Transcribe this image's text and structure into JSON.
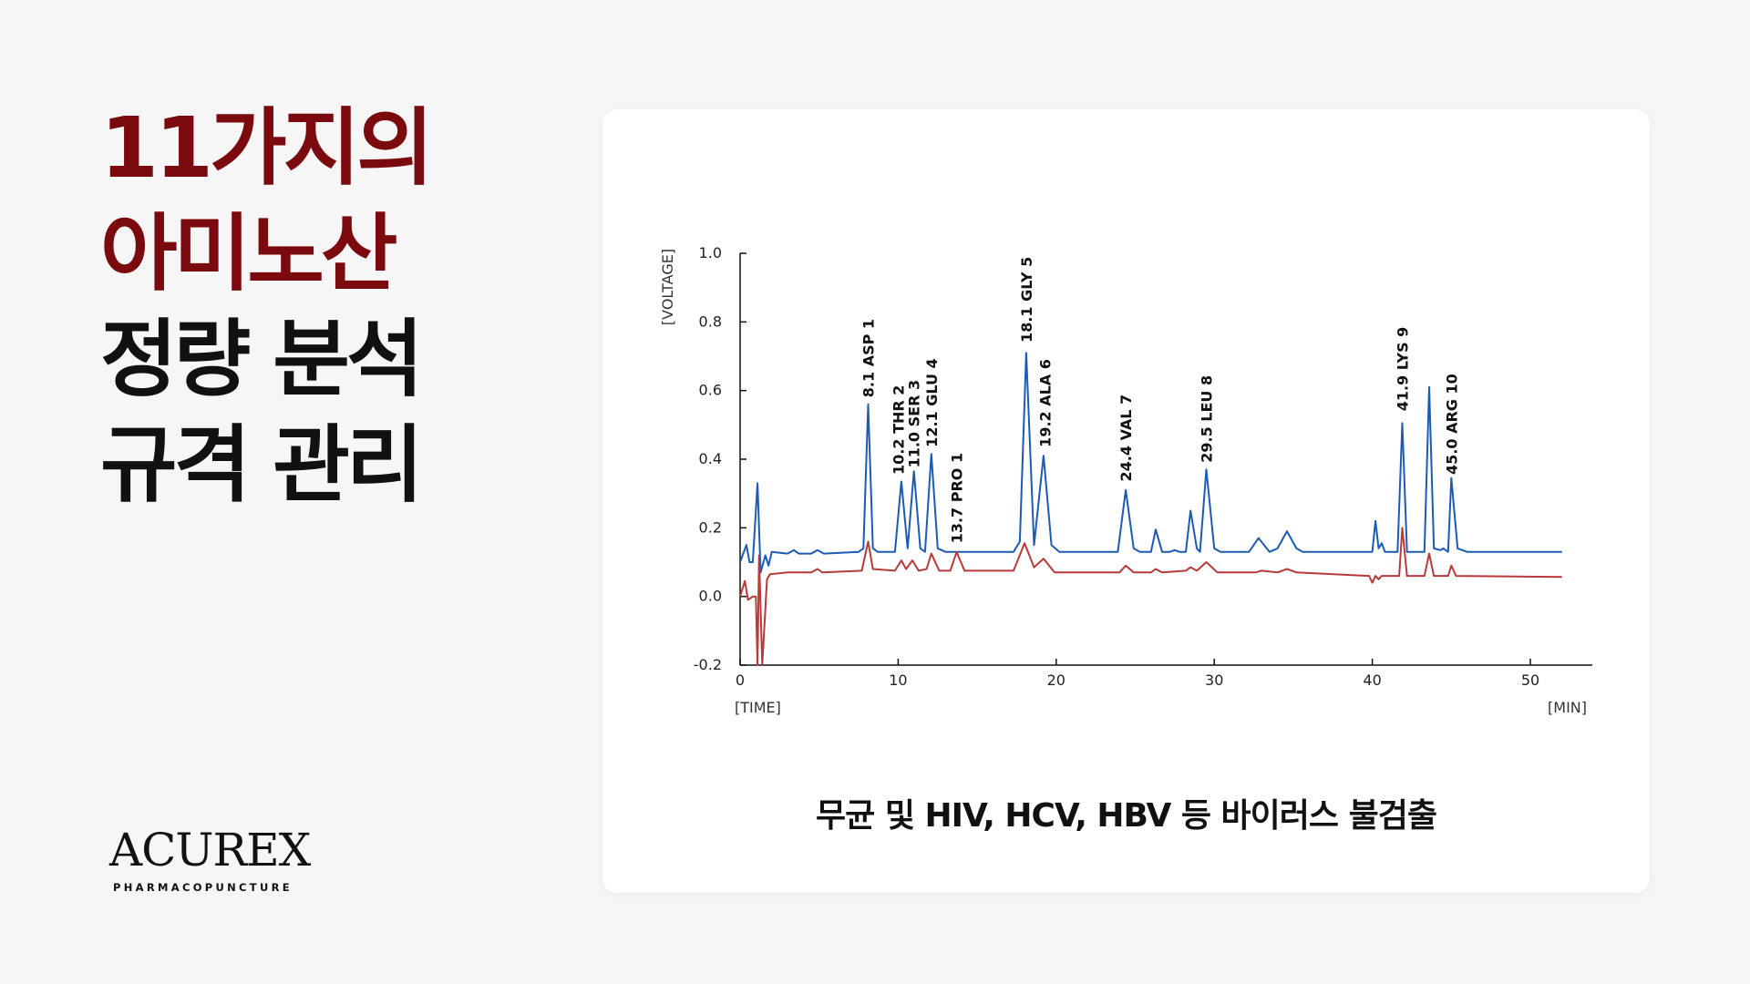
{
  "headline": {
    "lines": [
      "11가지의",
      "아미노산",
      "정량 분석",
      "규격 관리"
    ]
  },
  "logo": {
    "name": "ACUREX",
    "sub": "PHARMACOPUNCTURE"
  },
  "caption": "무균 및 HIV, HCV, HBV 등 바이러스 불검출",
  "colors": {
    "accent": "#7a0a0e",
    "series_blue": "#1c5bb5",
    "series_red": "#b83a3a"
  },
  "chart_data": {
    "type": "line",
    "xlabel": "[TIME]",
    "xunit": "[MIN]",
    "ylabel": "[VOLTAGE]",
    "xlim": [
      0,
      52
    ],
    "ylim": [
      -0.2,
      1.0
    ],
    "xticks": [
      "0",
      "10",
      "20",
      "30",
      "40",
      "50"
    ],
    "yticks": [
      "1.0",
      "0.8",
      "0.6",
      "0.4",
      "0.2",
      "0.0",
      "-0.2"
    ],
    "grid": false,
    "series": [
      {
        "color": "#1c5bb5",
        "points": [
          [
            0,
            0.1
          ],
          [
            0.4,
            0.15
          ],
          [
            0.6,
            0.1
          ],
          [
            0.8,
            0.1
          ],
          [
            1.1,
            0.33
          ],
          [
            1.3,
            0.07
          ],
          [
            1.6,
            0.12
          ],
          [
            1.8,
            0.09
          ],
          [
            2.0,
            0.13
          ],
          [
            3,
            0.125
          ],
          [
            3.4,
            0.135
          ],
          [
            3.7,
            0.125
          ],
          [
            4.5,
            0.125
          ],
          [
            4.9,
            0.135
          ],
          [
            5.3,
            0.125
          ],
          [
            7.5,
            0.13
          ],
          [
            7.8,
            0.14
          ],
          [
            8.1,
            0.56
          ],
          [
            8.4,
            0.14
          ],
          [
            8.7,
            0.13
          ],
          [
            9.8,
            0.13
          ],
          [
            10.2,
            0.335
          ],
          [
            10.6,
            0.14
          ],
          [
            11.0,
            0.365
          ],
          [
            11.4,
            0.14
          ],
          [
            11.7,
            0.13
          ],
          [
            12.1,
            0.415
          ],
          [
            12.5,
            0.14
          ],
          [
            13,
            0.13
          ],
          [
            17.3,
            0.13
          ],
          [
            17.7,
            0.16
          ],
          [
            18.1,
            0.71
          ],
          [
            18.6,
            0.15
          ],
          [
            19.2,
            0.41
          ],
          [
            19.7,
            0.15
          ],
          [
            20.2,
            0.13
          ],
          [
            23.9,
            0.13
          ],
          [
            24.4,
            0.31
          ],
          [
            24.9,
            0.14
          ],
          [
            25.3,
            0.13
          ],
          [
            26.0,
            0.13
          ],
          [
            26.3,
            0.195
          ],
          [
            26.7,
            0.13
          ],
          [
            27.2,
            0.13
          ],
          [
            27.5,
            0.135
          ],
          [
            27.8,
            0.13
          ],
          [
            28.2,
            0.13
          ],
          [
            28.5,
            0.25
          ],
          [
            28.9,
            0.14
          ],
          [
            29.1,
            0.13
          ],
          [
            29.5,
            0.37
          ],
          [
            30,
            0.14
          ],
          [
            30.4,
            0.13
          ],
          [
            32.2,
            0.13
          ],
          [
            32.8,
            0.17
          ],
          [
            33.5,
            0.13
          ],
          [
            34.0,
            0.14
          ],
          [
            34.6,
            0.19
          ],
          [
            35.2,
            0.14
          ],
          [
            35.6,
            0.13
          ],
          [
            40.0,
            0.13
          ],
          [
            40.2,
            0.22
          ],
          [
            40.4,
            0.14
          ],
          [
            40.6,
            0.155
          ],
          [
            40.8,
            0.13
          ],
          [
            41.6,
            0.13
          ],
          [
            41.9,
            0.505
          ],
          [
            42.2,
            0.13
          ],
          [
            43.3,
            0.13
          ],
          [
            43.6,
            0.61
          ],
          [
            43.9,
            0.14
          ],
          [
            44.3,
            0.135
          ],
          [
            44.5,
            0.14
          ],
          [
            44.8,
            0.13
          ],
          [
            45.0,
            0.345
          ],
          [
            45.4,
            0.14
          ],
          [
            46,
            0.13
          ],
          [
            52,
            0.13
          ]
        ]
      },
      {
        "color": "#b83a3a",
        "points": [
          [
            0,
            0.0
          ],
          [
            0.3,
            0.045
          ],
          [
            0.5,
            -0.01
          ],
          [
            0.8,
            0.0
          ],
          [
            1.0,
            0.0
          ],
          [
            1.1,
            -0.2
          ],
          [
            1.2,
            0.12
          ],
          [
            1.4,
            -0.2
          ],
          [
            1.7,
            0.05
          ],
          [
            1.9,
            0.065
          ],
          [
            3,
            0.07
          ],
          [
            4.5,
            0.07
          ],
          [
            4.9,
            0.08
          ],
          [
            5.2,
            0.07
          ],
          [
            7.7,
            0.075
          ],
          [
            8.1,
            0.16
          ],
          [
            8.4,
            0.08
          ],
          [
            9.8,
            0.075
          ],
          [
            10.2,
            0.105
          ],
          [
            10.5,
            0.08
          ],
          [
            10.9,
            0.105
          ],
          [
            11.3,
            0.075
          ],
          [
            11.8,
            0.08
          ],
          [
            12.1,
            0.125
          ],
          [
            12.6,
            0.075
          ],
          [
            13.3,
            0.075
          ],
          [
            13.7,
            0.13
          ],
          [
            14.2,
            0.075
          ],
          [
            17.3,
            0.075
          ],
          [
            18.0,
            0.155
          ],
          [
            18.6,
            0.085
          ],
          [
            19.2,
            0.11
          ],
          [
            19.9,
            0.07
          ],
          [
            24.0,
            0.07
          ],
          [
            24.4,
            0.09
          ],
          [
            24.9,
            0.07
          ],
          [
            26.0,
            0.07
          ],
          [
            26.3,
            0.08
          ],
          [
            26.7,
            0.07
          ],
          [
            28.2,
            0.075
          ],
          [
            28.5,
            0.085
          ],
          [
            28.9,
            0.075
          ],
          [
            29.5,
            0.1
          ],
          [
            30.2,
            0.07
          ],
          [
            32.6,
            0.07
          ],
          [
            33.0,
            0.075
          ],
          [
            34.0,
            0.07
          ],
          [
            34.6,
            0.08
          ],
          [
            35.2,
            0.07
          ],
          [
            39.8,
            0.06
          ],
          [
            40.0,
            0.04
          ],
          [
            40.2,
            0.06
          ],
          [
            40.4,
            0.05
          ],
          [
            40.6,
            0.06
          ],
          [
            41.7,
            0.06
          ],
          [
            41.9,
            0.2
          ],
          [
            42.2,
            0.06
          ],
          [
            43.3,
            0.06
          ],
          [
            43.6,
            0.125
          ],
          [
            43.9,
            0.06
          ],
          [
            44.8,
            0.06
          ],
          [
            45.0,
            0.09
          ],
          [
            45.3,
            0.06
          ],
          [
            52,
            0.057
          ]
        ]
      }
    ],
    "annotations": [
      {
        "text": "8.1 ASP 1",
        "x": 8.1,
        "y": 0.58
      },
      {
        "text": "10.2 THR 2",
        "x": 10.0,
        "y": 0.355
      },
      {
        "text": "11.0 SER 3",
        "x": 11.0,
        "y": 0.375
      },
      {
        "text": "12.1 GLU 4",
        "x": 12.1,
        "y": 0.435
      },
      {
        "text": "13.7 PRO 1",
        "x": 13.7,
        "y": 0.155
      },
      {
        "text": "18.1 GLY 5",
        "x": 18.1,
        "y": 0.74
      },
      {
        "text": "19.2 ALA 6",
        "x": 19.3,
        "y": 0.435
      },
      {
        "text": "24.4 VAL 7",
        "x": 24.4,
        "y": 0.335
      },
      {
        "text": "29.5 LEU 8",
        "x": 29.5,
        "y": 0.39
      },
      {
        "text": "41.9 LYS 9",
        "x": 41.9,
        "y": 0.54
      },
      {
        "text": "45.0 ARG 10",
        "x": 45.0,
        "y": 0.355
      }
    ]
  }
}
